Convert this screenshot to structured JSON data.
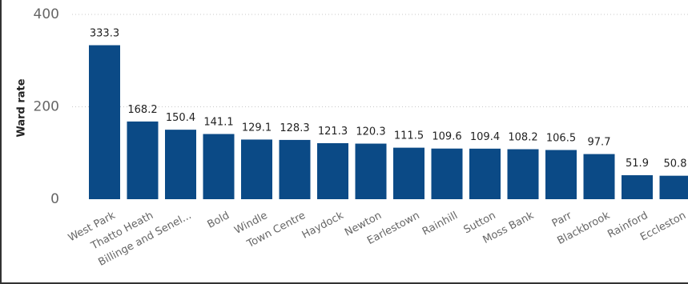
{
  "chart_data": {
    "type": "bar",
    "ylabel": "Ward rate",
    "ylim": [
      0,
      400
    ],
    "yticks": [
      0,
      200,
      400
    ],
    "grid": true,
    "bar_color": "#0b4a86",
    "categories": [
      "West Park",
      "Thatto Heath",
      "Billinge and Senel...",
      "Bold",
      "Windle",
      "Town Centre",
      "Haydock",
      "Newton",
      "Earlestown",
      "Rainhill",
      "Sutton",
      "Moss Bank",
      "Parr",
      "Blackbrook",
      "Rainford",
      "Eccleston"
    ],
    "values": [
      333.3,
      168.2,
      150.4,
      141.1,
      129.1,
      128.3,
      121.3,
      120.3,
      111.5,
      109.6,
      109.4,
      108.2,
      106.5,
      97.7,
      51.9,
      50.8
    ],
    "data_labels": [
      "333.3",
      "168.2",
      "150.4",
      "141.1",
      "129.1",
      "128.3",
      "121.3",
      "120.3",
      "111.5",
      "109.6",
      "109.4",
      "108.2",
      "106.5",
      "97.7",
      "51.9",
      "50.8"
    ]
  }
}
